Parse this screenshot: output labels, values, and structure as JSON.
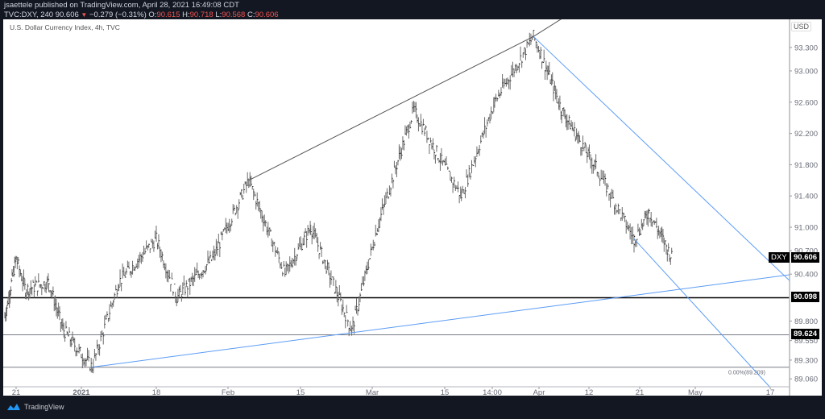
{
  "header": {
    "line1": "jsaettele published on TradingView.com, April 28, 2021 16:49:08 CDT",
    "symbol": "TVC:DXY, 240",
    "last": "90.606",
    "change_arrow": "▼",
    "change": "−0.279 (−0.31%)",
    "o_label": "O:",
    "o": "90.615",
    "h_label": "H:",
    "h": "90.718",
    "l_label": "L:",
    "l": "90.568",
    "c_label": "C:",
    "c": "90.606"
  },
  "chart": {
    "title": "U.S. Dollar Currency Index, 4h, TVC",
    "currency": "USD",
    "symbol_tag": "DXY",
    "last_price_tag": "90.606",
    "level_tags": [
      "90.098",
      "89.624"
    ],
    "fib_label": "0.00%(89.209)"
  },
  "footer": {
    "brand": "TradingView"
  },
  "colors": {
    "background": "#131722",
    "panel": "#ffffff",
    "trendline_blue": "#5b9cf6",
    "down": "#ef5350",
    "bars": "#555555"
  },
  "chart_data": {
    "type": "ohlc_bar",
    "title": "U.S. Dollar Currency Index, 4h, TVC",
    "ylabel": "USD",
    "ylim": [
      89.0,
      93.5
    ],
    "y_ticks": [
      89.06,
      89.3,
      89.55,
      89.8,
      90.098,
      90.4,
      90.7,
      91.0,
      91.4,
      91.8,
      92.2,
      92.6,
      93.0,
      93.3
    ],
    "x_ticks": [
      "21",
      "2021",
      "18",
      "Feb",
      "15",
      "Mar",
      "15",
      "14:00",
      "Apr",
      "12",
      "21",
      "May",
      "17"
    ],
    "last": 90.606,
    "approx_path": [
      {
        "date": "Dec 17",
        "price": 89.85
      },
      {
        "date": "Dec 21",
        "price": 90.6
      },
      {
        "date": "Dec 23",
        "price": 90.2
      },
      {
        "date": "Dec 28",
        "price": 90.3
      },
      {
        "date": "Dec 31",
        "price": 89.7
      },
      {
        "date": "Jan 6",
        "price": 89.21
      },
      {
        "date": "Jan 11",
        "price": 90.3
      },
      {
        "date": "Jan 18",
        "price": 90.85
      },
      {
        "date": "Jan 22",
        "price": 90.1
      },
      {
        "date": "Jan 29",
        "price": 90.6
      },
      {
        "date": "Feb 5",
        "price": 91.6
      },
      {
        "date": "Feb 12",
        "price": 90.4
      },
      {
        "date": "Feb 17",
        "price": 91.0
      },
      {
        "date": "Feb 25",
        "price": 89.68
      },
      {
        "date": "Mar 2",
        "price": 91.0
      },
      {
        "date": "Mar 9",
        "price": 92.5
      },
      {
        "date": "Mar 18",
        "price": 91.4
      },
      {
        "date": "Mar 24",
        "price": 92.6
      },
      {
        "date": "Mar 31",
        "price": 93.44
      },
      {
        "date": "Apr 6",
        "price": 92.5
      },
      {
        "date": "Apr 13",
        "price": 91.8
      },
      {
        "date": "Apr 20",
        "price": 90.85
      },
      {
        "date": "Apr 23",
        "price": 91.2
      },
      {
        "date": "Apr 28",
        "price": 90.606
      }
    ],
    "horizontal_levels": [
      {
        "price": 90.098,
        "color": "#000000"
      },
      {
        "price": 89.624,
        "color": "#787b86"
      },
      {
        "price": 89.209,
        "color": "#787b86",
        "label": "0.00%(89.209)"
      }
    ],
    "trendlines": [
      {
        "from": {
          "date": "Feb 5",
          "price": 91.6
        },
        "to": {
          "date": "Mar 31",
          "price": 93.44
        },
        "color": "#555555"
      },
      {
        "from": {
          "date": "Jan 6",
          "price": 89.21
        },
        "to": {
          "date": "May 27",
          "price": 90.45
        },
        "color": "#5b9cf6"
      },
      {
        "from": {
          "date": "Mar 31",
          "price": 93.44
        },
        "to": {
          "date": "May 27",
          "price": 89.9
        },
        "color": "#5b9cf6"
      },
      {
        "from": {
          "date": "Apr 20",
          "price": 90.85
        },
        "to": {
          "date": "May 17",
          "price": 88.95
        },
        "color": "#5b9cf6"
      }
    ]
  }
}
